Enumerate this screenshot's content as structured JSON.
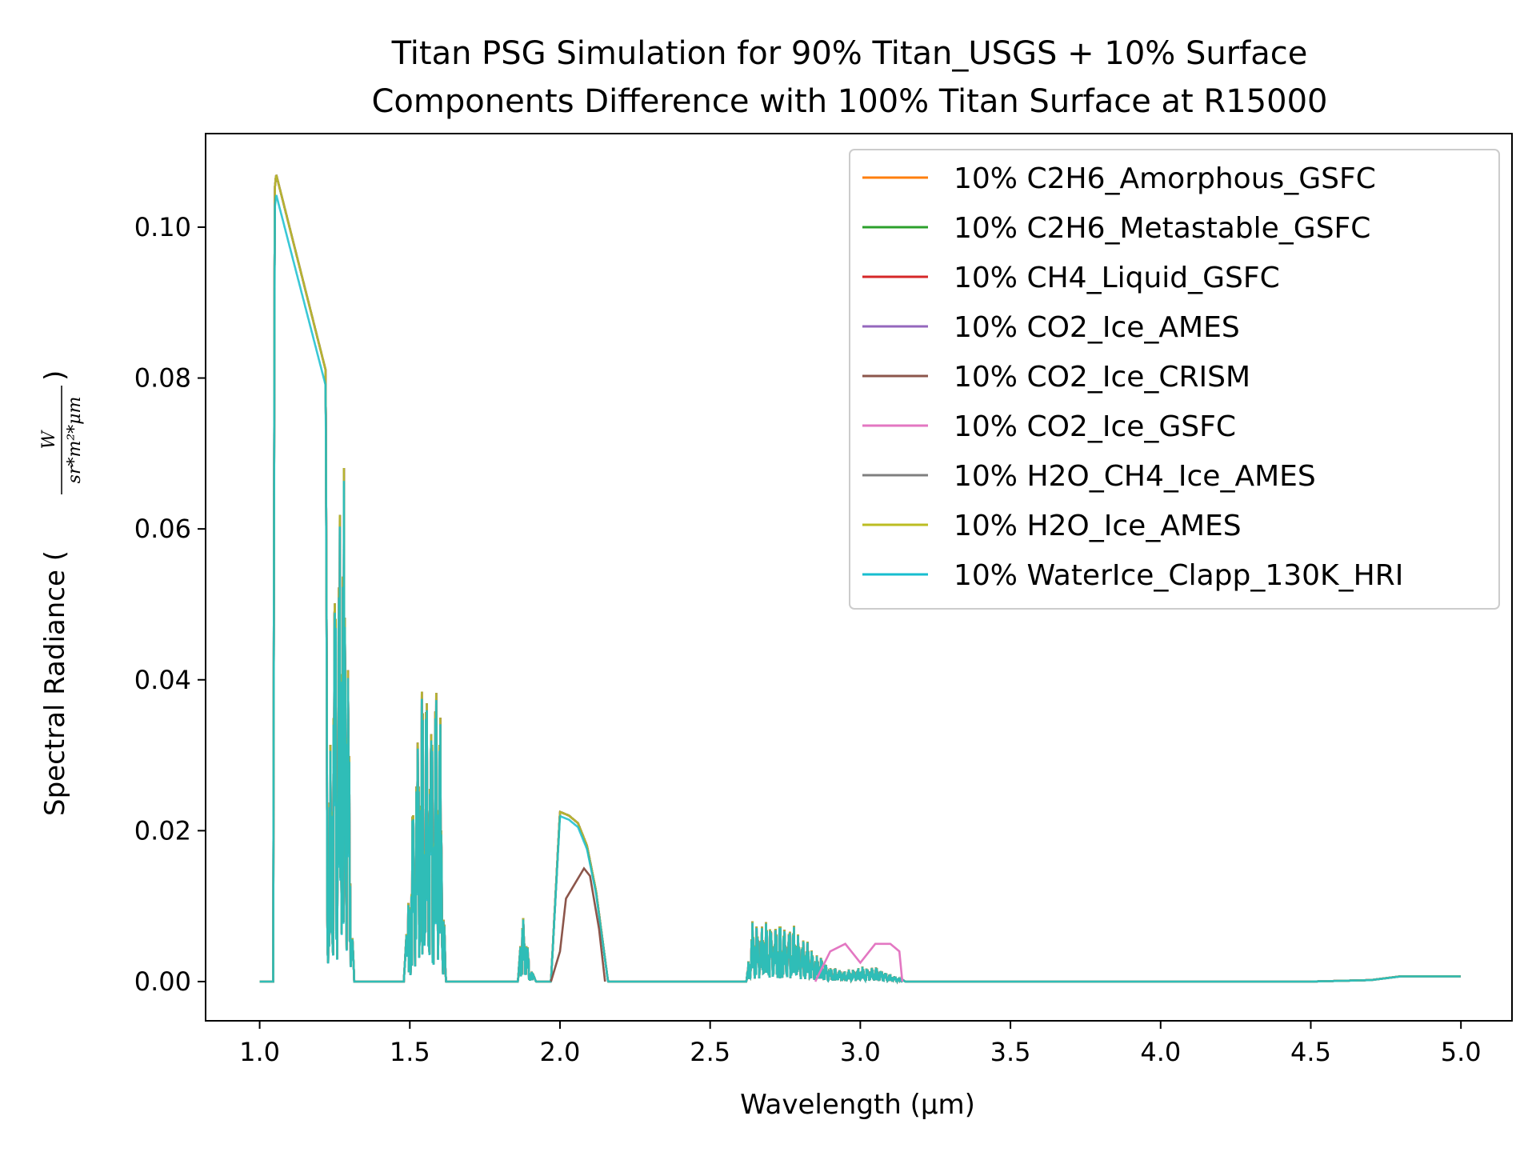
{
  "chart_data": {
    "type": "line",
    "title_line1": "Titan PSG Simulation for 90% Titan_USGS + 10% Surface",
    "title_line2": "Components Difference with 100% Titan Surface at R15000",
    "xlabel": "Wavelength (μm)",
    "ylabel": "Spectral Radiance (",
    "ylabel_close": ")",
    "ylabel_unit_num": "W",
    "ylabel_unit_den": "sr*m²*μm",
    "xlim": [
      0.82,
      5.17
    ],
    "ylim": [
      -0.0052,
      0.1124
    ],
    "xticks": [
      1.0,
      1.5,
      2.0,
      2.5,
      3.0,
      3.5,
      4.0,
      4.5,
      5.0
    ],
    "xtick_labels": [
      "1.0",
      "1.5",
      "2.0",
      "2.5",
      "3.0",
      "3.5",
      "4.0",
      "4.5",
      "5.0"
    ],
    "yticks": [
      0.0,
      0.02,
      0.04,
      0.06,
      0.08,
      0.1
    ],
    "ytick_labels": [
      "0.00",
      "0.02",
      "0.04",
      "0.06",
      "0.08",
      "0.10"
    ],
    "grid": false,
    "legend_position": "upper right",
    "series": [
      {
        "name": "10% C2H6_Amorphous_GSFC",
        "color": "#ff7f0e",
        "scale": 1.0
      },
      {
        "name": "10% C2H6_Metastable_GSFC",
        "color": "#2ca02c",
        "scale": 1.0
      },
      {
        "name": "10% CH4_Liquid_GSFC",
        "color": "#d62728",
        "scale": 1.0
      },
      {
        "name": "10% CO2_Ice_AMES",
        "color": "#9467bd",
        "scale": 1.0
      },
      {
        "name": "10% CO2_Ice_CRISM",
        "color": "#8c564b",
        "scale": 1.0
      },
      {
        "name": "10% CO2_Ice_GSFC",
        "color": "#e377c2",
        "scale": 1.0
      },
      {
        "name": "10% H2O_CH4_Ice_AMES",
        "color": "#7f7f7f",
        "scale": 1.0
      },
      {
        "name": "10% H2O_Ice_AMES",
        "color": "#bcbd22",
        "scale": 1.0
      },
      {
        "name": "10% WaterIce_Clapp_130K_HRI",
        "color": "#17becf",
        "scale": 0.975
      }
    ],
    "envelope": {
      "x": [
        1.0,
        1.045,
        1.05,
        1.055,
        1.22,
        1.225,
        1.23,
        1.25,
        1.26,
        1.27,
        1.28,
        1.29,
        1.3,
        1.31,
        1.315,
        1.48,
        1.5,
        1.52,
        1.54,
        1.56,
        1.58,
        1.6,
        1.62,
        1.625,
        1.86,
        1.88,
        1.9,
        1.92,
        1.97,
        2.0,
        2.03,
        2.06,
        2.09,
        2.12,
        2.15,
        2.16,
        2.62,
        2.64,
        2.7,
        2.78,
        2.85,
        2.9,
        2.95,
        3.0,
        3.05,
        3.1,
        3.13,
        3.15,
        4.5,
        4.7,
        4.8,
        5.0
      ],
      "y": [
        0.0,
        0.0,
        0.105,
        0.107,
        0.081,
        0.022,
        0.022,
        0.065,
        0.055,
        0.068,
        0.071,
        0.069,
        0.03,
        0.005,
        0.0,
        0.0,
        0.014,
        0.036,
        0.04,
        0.041,
        0.04,
        0.04,
        0.0,
        0.0,
        0.0,
        0.011,
        0.002,
        0.0,
        0.0,
        0.0225,
        0.022,
        0.021,
        0.018,
        0.012,
        0.003,
        0.0,
        0.0,
        0.008,
        0.008,
        0.0075,
        0.004,
        0.002,
        0.0015,
        0.002,
        0.002,
        0.001,
        0.0005,
        0.0,
        0.0,
        0.0002,
        0.0007,
        0.0007
      ]
    },
    "co2_features": [
      {
        "series": "10% CO2_Ice_CRISM",
        "x": [
          1.97,
          2.0,
          2.02,
          2.05,
          2.08,
          2.1,
          2.13,
          2.15
        ],
        "y": [
          0.0,
          0.004,
          0.011,
          0.013,
          0.015,
          0.014,
          0.007,
          0.0
        ]
      },
      {
        "series": "10% CO2_Ice_GSFC",
        "x": [
          2.85,
          2.9,
          2.95,
          3.0,
          3.05,
          3.1,
          3.13,
          3.14
        ],
        "y": [
          0.0,
          0.004,
          0.005,
          0.0025,
          0.005,
          0.005,
          0.004,
          0.0
        ]
      }
    ]
  }
}
